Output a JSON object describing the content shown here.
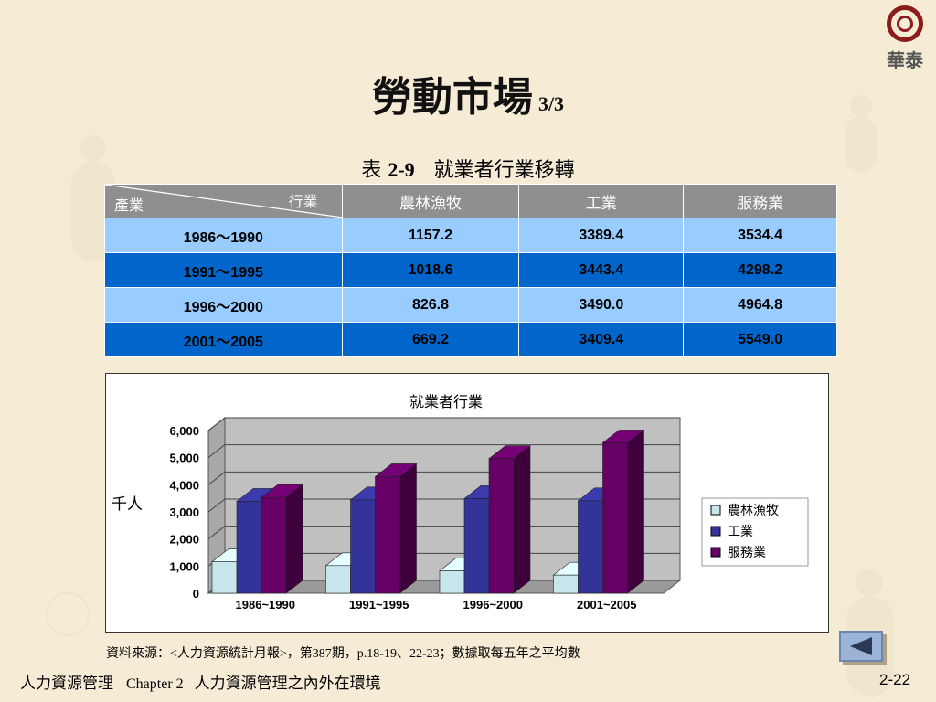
{
  "title": {
    "main": "勞動市場",
    "page": "3/3"
  },
  "logo": {
    "text": "華泰"
  },
  "table_caption": {
    "prefix": "表",
    "number": "2-9",
    "text": "就業者行業移轉"
  },
  "table": {
    "corner_left": "產業",
    "corner_right": "行業",
    "headers": [
      "農林漁牧",
      "工業",
      "服務業"
    ],
    "rows": [
      {
        "period": "1986～1990",
        "values": [
          "1157.2",
          "3389.4",
          "3534.4"
        ]
      },
      {
        "period": "1991～1995",
        "values": [
          "1018.6",
          "3443.4",
          "4298.2"
        ]
      },
      {
        "period": "1996～2000",
        "values": [
          "826.8",
          "3490.0",
          "4964.8"
        ]
      },
      {
        "period": "2001～2005",
        "values": [
          "669.2",
          "3409.4",
          "5549.0"
        ]
      }
    ]
  },
  "chart_data": {
    "type": "bar",
    "title": "就業者行業",
    "ylabel": "千人",
    "xlabel": "",
    "ylim": [
      0,
      6000
    ],
    "yticks": [
      "0",
      "1,000",
      "2,000",
      "3,000",
      "4,000",
      "5,000",
      "6,000"
    ],
    "categories": [
      "1986~1990",
      "1991~1995",
      "1996~2000",
      "2001~2005"
    ],
    "series": [
      {
        "name": "農林漁牧",
        "values": [
          1157.2,
          1018.6,
          826.8,
          669.2
        ],
        "color": "#c6e6ec"
      },
      {
        "name": "工業",
        "values": [
          3389.4,
          3443.4,
          3490.0,
          3409.4
        ],
        "color": "#333399"
      },
      {
        "name": "服務業",
        "values": [
          3534.4,
          4298.2,
          4964.8,
          5549.0
        ],
        "color": "#660066"
      }
    ],
    "legend": "right",
    "grid": true
  },
  "source": "資料來源：<人力資源統計月報>，第387期，p.18-19、22-23；數據取每五年之平均數",
  "footer": {
    "left": "人力資源管理",
    "chapter": "Chapter 2",
    "subtitle": "人力資源管理之內外在環境"
  },
  "page_number": "2-22",
  "nav": {
    "back_icon": "triangle-left-icon"
  }
}
